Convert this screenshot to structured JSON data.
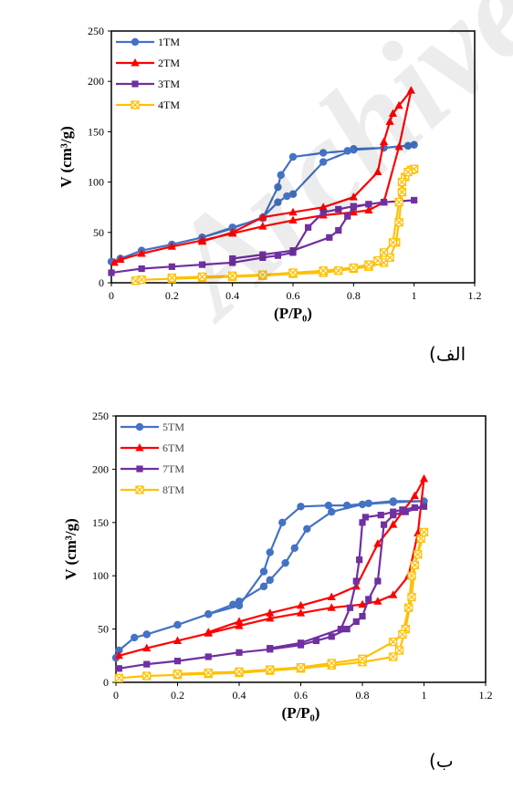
{
  "watermark": "Archive",
  "captions": [
    "(الف",
    "(ب"
  ],
  "chart_data": [
    {
      "type": "line",
      "xlabel": "(P/P₀)",
      "ylabel": "V (cm³/g)",
      "xlim": [
        0,
        1.2
      ],
      "ylim": [
        0,
        250
      ],
      "xticks": [
        "0",
        "0.2",
        "0.4",
        "0.6",
        "0.8",
        "1",
        "1.2"
      ],
      "yticks": [
        "0",
        "50",
        "100",
        "150",
        "200",
        "250"
      ],
      "grid": false,
      "legend": "top-left",
      "series": [
        {
          "name": "1TM",
          "color": "#4472C4",
          "marker": "circle",
          "points": [
            [
              0,
              21
            ],
            [
              0.03,
              24
            ],
            [
              0.1,
              32
            ],
            [
              0.2,
              38
            ],
            [
              0.3,
              45
            ],
            [
              0.4,
              54
            ],
            [
              0.5,
              65
            ],
            [
              0.55,
              80
            ],
            [
              0.58,
              86
            ],
            [
              0.6,
              88
            ],
            [
              0.7,
              120
            ],
            [
              0.8,
              132
            ],
            [
              0.9,
              134
            ],
            [
              0.98,
              136
            ],
            [
              1.0,
              137
            ],
            [
              0.9,
              134
            ],
            [
              0.8,
              133
            ],
            [
              0.78,
              131
            ],
            [
              0.7,
              129
            ],
            [
              0.6,
              125
            ],
            [
              0.56,
              107
            ],
            [
              0.55,
              95
            ],
            [
              0.5,
              64
            ],
            [
              0.4,
              55
            ],
            [
              0.3,
              45
            ],
            [
              0.2,
              38
            ],
            [
              0.1,
              32
            ],
            [
              0.03,
              24
            ]
          ]
        },
        {
          "name": "2TM",
          "color": "#FF0000",
          "marker": "triangle",
          "points": [
            [
              0.01,
              20
            ],
            [
              0.03,
              23
            ],
            [
              0.1,
              29
            ],
            [
              0.2,
              36
            ],
            [
              0.3,
              42
            ],
            [
              0.4,
              49
            ],
            [
              0.5,
              56
            ],
            [
              0.6,
              62
            ],
            [
              0.7,
              67
            ],
            [
              0.8,
              70
            ],
            [
              0.85,
              72
            ],
            [
              0.9,
              80
            ],
            [
              0.95,
              135
            ],
            [
              0.99,
              191
            ],
            [
              0.95,
              176
            ],
            [
              0.93,
              168
            ],
            [
              0.92,
              160
            ],
            [
              0.9,
              140
            ],
            [
              0.88,
              110
            ],
            [
              0.8,
              85
            ],
            [
              0.7,
              75
            ],
            [
              0.6,
              70
            ],
            [
              0.5,
              65
            ],
            [
              0.4,
              50
            ],
            [
              0.3,
              41
            ]
          ]
        },
        {
          "name": "3TM",
          "color": "#7030A0",
          "marker": "square",
          "points": [
            [
              0,
              10
            ],
            [
              0.1,
              14
            ],
            [
              0.2,
              16
            ],
            [
              0.3,
              18
            ],
            [
              0.4,
              20
            ],
            [
              0.5,
              25
            ],
            [
              0.55,
              27
            ],
            [
              0.6,
              30
            ],
            [
              0.65,
              55
            ],
            [
              0.7,
              70
            ],
            [
              0.75,
              73
            ],
            [
              0.8,
              76
            ],
            [
              0.85,
              78
            ],
            [
              0.9,
              80
            ],
            [
              0.95,
              81
            ],
            [
              1.0,
              82
            ],
            [
              0.9,
              80
            ],
            [
              0.85,
              78
            ],
            [
              0.8,
              75
            ],
            [
              0.78,
              66
            ],
            [
              0.75,
              52
            ],
            [
              0.72,
              45
            ],
            [
              0.6,
              32
            ],
            [
              0.5,
              28
            ],
            [
              0.4,
              24
            ]
          ]
        },
        {
          "name": "4TM",
          "color": "#FFC000",
          "marker": "xbox",
          "points": [
            [
              0.08,
              2
            ],
            [
              0.1,
              3
            ],
            [
              0.2,
              4
            ],
            [
              0.3,
              5
            ],
            [
              0.4,
              6
            ],
            [
              0.5,
              7
            ],
            [
              0.6,
              9
            ],
            [
              0.7,
              10
            ],
            [
              0.75,
              12
            ],
            [
              0.8,
              14
            ],
            [
              0.85,
              16
            ],
            [
              0.9,
              20
            ],
            [
              0.92,
              25
            ],
            [
              0.94,
              40
            ],
            [
              0.95,
              60
            ],
            [
              0.96,
              90
            ],
            [
              0.97,
              105
            ],
            [
              0.99,
              112
            ],
            [
              1.0,
              113
            ],
            [
              0.98,
              110
            ],
            [
              0.96,
              100
            ],
            [
              0.95,
              80
            ],
            [
              0.93,
              40
            ],
            [
              0.9,
              30
            ],
            [
              0.88,
              22
            ],
            [
              0.85,
              18
            ],
            [
              0.8,
              15
            ],
            [
              0.7,
              12
            ],
            [
              0.6,
              10
            ],
            [
              0.5,
              8
            ],
            [
              0.4,
              7
            ],
            [
              0.3,
              6
            ],
            [
              0.2,
              5
            ]
          ]
        }
      ]
    },
    {
      "type": "line",
      "xlabel": "(P/P₀)",
      "ylabel": "V (cm³/g)",
      "xlim": [
        0,
        1.2
      ],
      "ylim": [
        0,
        250
      ],
      "xticks": [
        "0",
        "0.2",
        "0.4",
        "0.6",
        "0.8",
        "1",
        "1.2"
      ],
      "yticks": [
        "0",
        "50",
        "100",
        "150",
        "200",
        "250"
      ],
      "grid": false,
      "legend": "top-left",
      "series": [
        {
          "name": "5TM",
          "color": "#4472C4",
          "marker": "circle",
          "points": [
            [
              0,
              23
            ],
            [
              0.01,
              30
            ],
            [
              0.06,
              42
            ],
            [
              0.1,
              45
            ],
            [
              0.2,
              54
            ],
            [
              0.3,
              64
            ],
            [
              0.38,
              73
            ],
            [
              0.4,
              76
            ],
            [
              0.48,
              90
            ],
            [
              0.5,
              96
            ],
            [
              0.55,
              112
            ],
            [
              0.58,
              126
            ],
            [
              0.62,
              144
            ],
            [
              0.7,
              160
            ],
            [
              0.8,
              167
            ],
            [
              0.9,
              169
            ],
            [
              1.0,
              170
            ],
            [
              0.9,
              170
            ],
            [
              0.82,
              168
            ],
            [
              0.75,
              166
            ],
            [
              0.69,
              166
            ],
            [
              0.6,
              165
            ],
            [
              0.54,
              150
            ],
            [
              0.5,
              122
            ],
            [
              0.48,
              104
            ],
            [
              0.4,
              72
            ],
            [
              0.3,
              64
            ],
            [
              0.2,
              54
            ],
            [
              0.1,
              45
            ]
          ]
        },
        {
          "name": "6TM",
          "color": "#FF0000",
          "marker": "triangle",
          "points": [
            [
              0.01,
              25
            ],
            [
              0.1,
              32
            ],
            [
              0.2,
              39
            ],
            [
              0.3,
              46
            ],
            [
              0.4,
              53
            ],
            [
              0.5,
              60
            ],
            [
              0.6,
              65
            ],
            [
              0.7,
              70
            ],
            [
              0.8,
              73
            ],
            [
              0.85,
              76
            ],
            [
              0.9,
              82
            ],
            [
              0.95,
              100
            ],
            [
              0.98,
              140
            ],
            [
              1.0,
              191
            ],
            [
              0.97,
              175
            ],
            [
              0.93,
              160
            ],
            [
              0.9,
              148
            ],
            [
              0.85,
              130
            ],
            [
              0.78,
              90
            ],
            [
              0.7,
              80
            ],
            [
              0.6,
              72
            ],
            [
              0.5,
              65
            ],
            [
              0.4,
              57
            ],
            [
              0.3,
              47
            ]
          ]
        },
        {
          "name": "7TM",
          "color": "#7030A0",
          "marker": "square",
          "points": [
            [
              0.01,
              13
            ],
            [
              0.1,
              17
            ],
            [
              0.2,
              20
            ],
            [
              0.3,
              24
            ],
            [
              0.4,
              28
            ],
            [
              0.5,
              31
            ],
            [
              0.6,
              35
            ],
            [
              0.65,
              39
            ],
            [
              0.7,
              43
            ],
            [
              0.75,
              50
            ],
            [
              0.78,
              57
            ],
            [
              0.8,
              62
            ],
            [
              0.82,
              78
            ],
            [
              0.85,
              95
            ],
            [
              0.87,
              148
            ],
            [
              0.9,
              157
            ],
            [
              0.94,
              160
            ],
            [
              1.0,
              165
            ],
            [
              0.97,
              164
            ],
            [
              0.93,
              162
            ],
            [
              0.9,
              160
            ],
            [
              0.86,
              157
            ],
            [
              0.81,
              155
            ],
            [
              0.8,
              150
            ],
            [
              0.79,
              115
            ],
            [
              0.78,
              95
            ],
            [
              0.76,
              70
            ],
            [
              0.73,
              50
            ],
            [
              0.6,
              37
            ],
            [
              0.5,
              32
            ]
          ]
        },
        {
          "name": "8TM",
          "color": "#FFC000",
          "marker": "xbox",
          "points": [
            [
              0.01,
              4
            ],
            [
              0.1,
              6
            ],
            [
              0.2,
              7
            ],
            [
              0.3,
              8
            ],
            [
              0.4,
              9
            ],
            [
              0.5,
              11
            ],
            [
              0.6,
              13
            ],
            [
              0.7,
              16
            ],
            [
              0.8,
              19
            ],
            [
              0.9,
              24
            ],
            [
              0.92,
              30
            ],
            [
              0.94,
              50
            ],
            [
              0.96,
              80
            ],
            [
              0.97,
              110
            ],
            [
              0.99,
              135
            ],
            [
              1.0,
              141
            ],
            [
              0.98,
              120
            ],
            [
              0.96,
              100
            ],
            [
              0.95,
              70
            ],
            [
              0.93,
              45
            ],
            [
              0.9,
              38
            ],
            [
              0.8,
              22
            ],
            [
              0.7,
              18
            ],
            [
              0.6,
              14
            ],
            [
              0.5,
              12
            ],
            [
              0.4,
              10
            ],
            [
              0.3,
              9
            ],
            [
              0.2,
              8
            ]
          ]
        }
      ]
    }
  ]
}
